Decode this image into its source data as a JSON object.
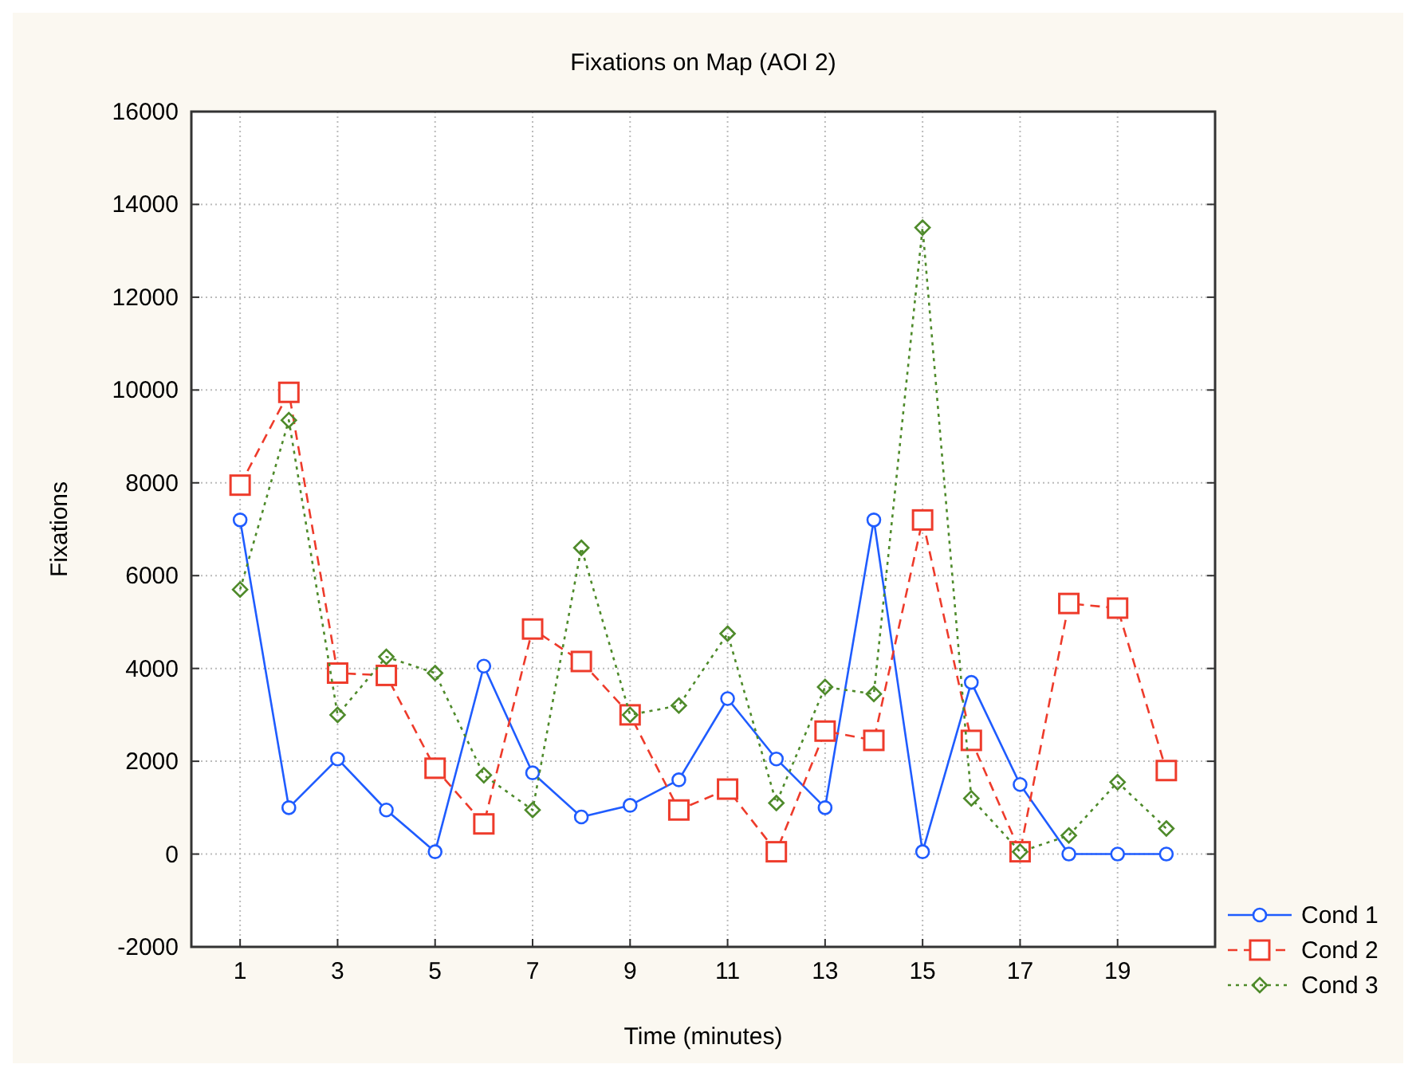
{
  "chart_data": {
    "type": "line",
    "title": "Fixations on Map (AOI 2)",
    "xlabel": "Time (minutes)",
    "ylabel": "Fixations",
    "x": [
      1,
      2,
      3,
      4,
      5,
      6,
      7,
      8,
      9,
      10,
      11,
      12,
      13,
      14,
      15,
      16,
      17,
      18,
      19,
      20
    ],
    "xlim": [
      0,
      21
    ],
    "xticks": [
      1,
      3,
      5,
      7,
      9,
      11,
      13,
      15,
      17,
      19
    ],
    "ylim": [
      -2000,
      16000
    ],
    "yticks": [
      -2000,
      0,
      2000,
      4000,
      6000,
      8000,
      10000,
      12000,
      14000,
      16000
    ],
    "grid": true,
    "legend": "bottom right",
    "series": [
      {
        "name": "Cond 1",
        "color": "#1f5cff",
        "marker": "circle",
        "line_style": "solid",
        "values": [
          7200,
          1000,
          2050,
          950,
          50,
          4050,
          1750,
          800,
          1050,
          1600,
          3350,
          2050,
          1000,
          7200,
          50,
          3700,
          1500,
          0,
          0,
          0
        ]
      },
      {
        "name": "Cond 2",
        "color": "#ee3b2b",
        "marker": "square",
        "line_style": "dashed",
        "values": [
          7950,
          9950,
          3900,
          3850,
          1850,
          650,
          4850,
          4150,
          3000,
          950,
          1400,
          50,
          2650,
          2450,
          7200,
          2450,
          50,
          5400,
          5300,
          1800
        ]
      },
      {
        "name": "Cond 3",
        "color": "#4e8a2a",
        "marker": "diamond",
        "line_style": "dotted",
        "values": [
          5700,
          9350,
          3000,
          4250,
          3900,
          1700,
          950,
          6600,
          3000,
          3200,
          4750,
          1100,
          3600,
          3450,
          13500,
          1200,
          50,
          400,
          1550,
          550
        ]
      }
    ]
  }
}
